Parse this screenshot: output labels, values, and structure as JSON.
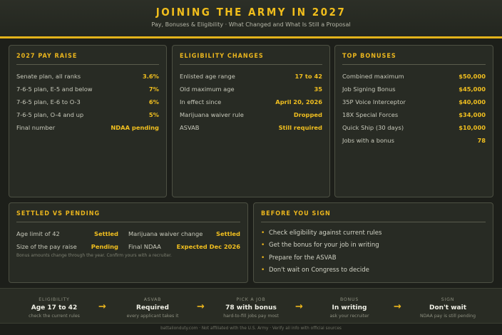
{
  "header": {
    "title": "JOINING THE ARMY IN 2027",
    "subtitle": "Pay, Bonuses & Eligibility · What Changed and What Is Still a Proposal"
  },
  "pay_raise": {
    "title": "2027 PAY RAISE",
    "rows": [
      {
        "label": "Senate plan, all ranks",
        "value": "3.6%"
      },
      {
        "label": "7-6-5 plan, E-5 and below",
        "value": "7%"
      },
      {
        "label": "7-6-5 plan, E-6 to O-3",
        "value": "6%"
      },
      {
        "label": "7-6-5 plan, O-4 and up",
        "value": "5%"
      },
      {
        "label": "Final number",
        "value": "NDAA pending"
      }
    ]
  },
  "eligibility": {
    "title": "ELIGIBILITY CHANGES",
    "rows": [
      {
        "label": "Enlisted age range",
        "value": "17 to 42"
      },
      {
        "label": "Old maximum age",
        "value": "35"
      },
      {
        "label": "In effect since",
        "value": "April 20, 2026"
      },
      {
        "label": "Marijuana waiver rule",
        "value": "Dropped"
      },
      {
        "label": "ASVAB",
        "value": "Still required"
      }
    ]
  },
  "bonuses": {
    "title": "TOP BONUSES",
    "rows": [
      {
        "label": "Combined maximum",
        "value": "$50,000"
      },
      {
        "label": "Job Signing Bonus",
        "value": "$45,000"
      },
      {
        "label": "35P Voice Interceptor",
        "value": "$40,000"
      },
      {
        "label": "18X Special Forces",
        "value": "$34,000"
      },
      {
        "label": "Quick Ship (30 days)",
        "value": "$10,000"
      },
      {
        "label": "Jobs with a bonus",
        "value": "78"
      }
    ]
  },
  "settled": {
    "title": "SETTLED VS PENDING",
    "rows": [
      [
        {
          "label": "Age limit of 42",
          "value": "Settled"
        },
        {
          "label": "Marijuana waiver change",
          "value": "Settled"
        }
      ],
      [
        {
          "label": "Size of the pay raise",
          "value": "Pending"
        },
        {
          "label": "Final NDAA",
          "value": "Expected Dec 2026"
        }
      ]
    ],
    "note": "Bonus amounts change through the year. Confirm yours with a recruiter."
  },
  "before_sign": {
    "title": "BEFORE YOU SIGN",
    "items": [
      "Check eligibility against current rules",
      "Get the bonus for your job in writing",
      "Prepare for the ASVAB",
      "Don't wait on Congress to decide"
    ]
  },
  "steps": [
    {
      "label": "ELIGIBILITY",
      "value": "Age 17 to 42",
      "sub": "check the current rules"
    },
    {
      "label": "ASVAB",
      "value": "Required",
      "sub": "every applicant takes it"
    },
    {
      "label": "PICK A JOB",
      "value": "78 with bonus",
      "sub": "hard-to-fill jobs pay most"
    },
    {
      "label": "BONUS",
      "value": "In writing",
      "sub": "ask your recruiter"
    },
    {
      "label": "SIGN",
      "value": "Don't wait",
      "sub": "NDAA pay is still pending"
    }
  ],
  "arrow_glyph": "→",
  "bullet_glyph": "•",
  "footer": "battalionduty.com · Not affiliated with the U.S. Army · Verify all info with official sources",
  "colors": {
    "accent": "#eab51d",
    "background": "#1d1f1a",
    "card": "#282b24"
  }
}
